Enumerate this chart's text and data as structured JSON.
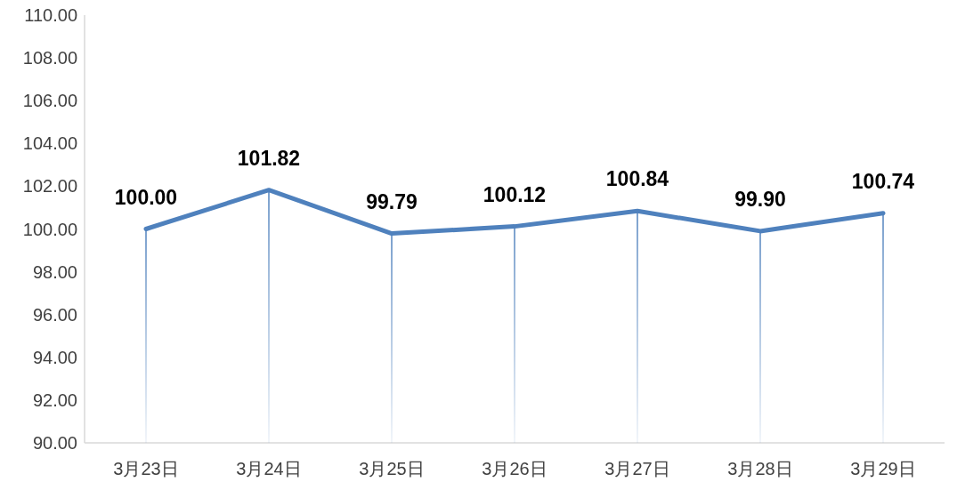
{
  "chart_data": {
    "type": "line",
    "categories": [
      "3月23日",
      "3月24日",
      "3月25日",
      "3月26日",
      "3月27日",
      "3月28日",
      "3月29日"
    ],
    "series": [
      {
        "color": "#4f81bd",
        "values": [
          100.0,
          101.82,
          99.79,
          100.12,
          100.84,
          99.9,
          100.74
        ],
        "value_labels": [
          "100.00",
          "101.82",
          "99.79",
          "100.12",
          "100.84",
          "99.90",
          "100.74"
        ]
      }
    ],
    "ylim": [
      90,
      110
    ],
    "yticks": [
      {
        "value": 90,
        "label": "90.00"
      },
      {
        "value": 92,
        "label": "92.00"
      },
      {
        "value": 94,
        "label": "94.00"
      },
      {
        "value": 96,
        "label": "96.00"
      },
      {
        "value": 98,
        "label": "98.00"
      },
      {
        "value": 100,
        "label": "100.00"
      },
      {
        "value": 102,
        "label": "102.00"
      },
      {
        "value": 104,
        "label": "104.00"
      },
      {
        "value": 106,
        "label": "106.00"
      },
      {
        "value": 108,
        "label": "108.00"
      },
      {
        "value": 110,
        "label": "110.00"
      }
    ],
    "data_labels": true,
    "grid": false,
    "legend": false,
    "marker": "none",
    "line_style": "solid"
  }
}
